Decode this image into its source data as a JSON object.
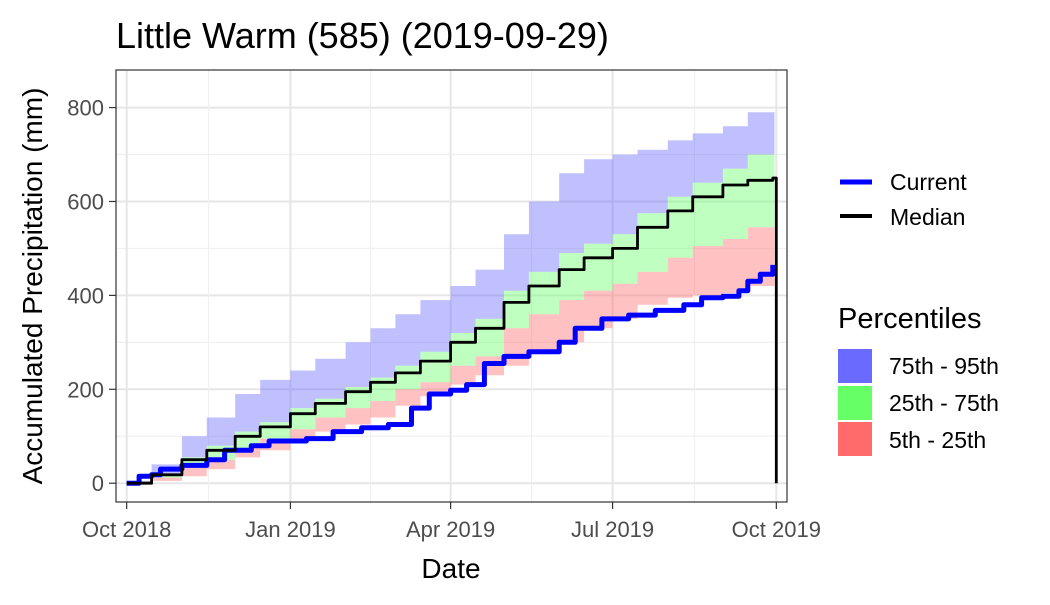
{
  "chart_data": {
    "type": "area",
    "title": "Little Warm (585) (2019-09-29)",
    "xlabel": "Date",
    "ylabel": "Accumulated Precipitation (mm)",
    "x_ticks": [
      {
        "date": "2018-10-01",
        "label": "Oct 2018"
      },
      {
        "date": "2019-01-01",
        "label": "Jan 2019"
      },
      {
        "date": "2019-04-01",
        "label": "Apr 2019"
      },
      {
        "date": "2019-07-01",
        "label": "Jul 2019"
      },
      {
        "date": "2019-10-01",
        "label": "Oct 2019"
      }
    ],
    "xlim": [
      "2018-09-25",
      "2019-10-07"
    ],
    "y_ticks": [
      0,
      200,
      400,
      600,
      800
    ],
    "ylim": [
      -40,
      880
    ],
    "grid": true,
    "colors": {
      "current": "#0000FF",
      "median": "#000000",
      "band_75_95": "#6A6AFF",
      "band_25_75": "#66FF66",
      "band_5_25": "#FF6B6B"
    },
    "series": [
      {
        "name": "Current",
        "points": [
          [
            "2018-10-01",
            0
          ],
          [
            "2018-10-08",
            15
          ],
          [
            "2018-10-15",
            18
          ],
          [
            "2018-10-20",
            30
          ],
          [
            "2018-11-01",
            38
          ],
          [
            "2018-11-15",
            50
          ],
          [
            "2018-11-25",
            70
          ],
          [
            "2018-12-10",
            80
          ],
          [
            "2018-12-20",
            90
          ],
          [
            "2019-01-10",
            95
          ],
          [
            "2019-01-25",
            110
          ],
          [
            "2019-02-10",
            118
          ],
          [
            "2019-02-25",
            125
          ],
          [
            "2019-03-10",
            160
          ],
          [
            "2019-03-20",
            190
          ],
          [
            "2019-04-01",
            198
          ],
          [
            "2019-04-10",
            210
          ],
          [
            "2019-04-20",
            255
          ],
          [
            "2019-05-01",
            270
          ],
          [
            "2019-05-15",
            280
          ],
          [
            "2019-06-01",
            300
          ],
          [
            "2019-06-10",
            330
          ],
          [
            "2019-06-25",
            350
          ],
          [
            "2019-07-10",
            358
          ],
          [
            "2019-07-25",
            368
          ],
          [
            "2019-08-10",
            380
          ],
          [
            "2019-08-20",
            395
          ],
          [
            "2019-09-01",
            398
          ],
          [
            "2019-09-10",
            410
          ],
          [
            "2019-09-15",
            430
          ],
          [
            "2019-09-22",
            445
          ],
          [
            "2019-09-29",
            465
          ]
        ]
      },
      {
        "name": "Median",
        "points": [
          [
            "2018-10-01",
            0
          ],
          [
            "2018-10-15",
            18
          ],
          [
            "2018-11-01",
            50
          ],
          [
            "2018-11-15",
            70
          ],
          [
            "2018-12-01",
            100
          ],
          [
            "2018-12-15",
            120
          ],
          [
            "2019-01-01",
            148
          ],
          [
            "2019-01-15",
            170
          ],
          [
            "2019-02-01",
            195
          ],
          [
            "2019-02-15",
            215
          ],
          [
            "2019-03-01",
            235
          ],
          [
            "2019-03-15",
            260
          ],
          [
            "2019-04-01",
            300
          ],
          [
            "2019-04-15",
            330
          ],
          [
            "2019-05-01",
            385
          ],
          [
            "2019-05-15",
            420
          ],
          [
            "2019-06-01",
            455
          ],
          [
            "2019-06-15",
            480
          ],
          [
            "2019-07-01",
            500
          ],
          [
            "2019-07-15",
            545
          ],
          [
            "2019-08-01",
            580
          ],
          [
            "2019-08-15",
            610
          ],
          [
            "2019-09-01",
            635
          ],
          [
            "2019-09-15",
            645
          ],
          [
            "2019-09-29",
            650
          ],
          [
            "2019-09-30",
            650
          ],
          [
            "2019-10-01",
            0
          ]
        ]
      }
    ],
    "bands": [
      {
        "name": "75th - 95th",
        "x": [
          "2018-10-01",
          "2018-10-15",
          "2018-11-01",
          "2018-11-15",
          "2018-12-01",
          "2018-12-15",
          "2019-01-01",
          "2019-01-15",
          "2019-02-01",
          "2019-02-15",
          "2019-03-01",
          "2019-03-15",
          "2019-04-01",
          "2019-04-15",
          "2019-05-01",
          "2019-05-15",
          "2019-06-01",
          "2019-06-15",
          "2019-07-01",
          "2019-07-15",
          "2019-08-01",
          "2019-08-15",
          "2019-09-01",
          "2019-09-15",
          "2019-09-30"
        ],
        "lower": [
          0,
          20,
          55,
          80,
          110,
          130,
          160,
          180,
          205,
          225,
          250,
          280,
          320,
          350,
          410,
          450,
          490,
          510,
          530,
          575,
          610,
          640,
          670,
          700,
          730
        ],
        "upper": [
          5,
          40,
          100,
          140,
          190,
          220,
          240,
          265,
          300,
          330,
          360,
          390,
          420,
          455,
          530,
          600,
          660,
          690,
          700,
          710,
          730,
          745,
          760,
          790,
          840
        ]
      },
      {
        "name": "25th - 75th",
        "x": [
          "2018-10-01",
          "2018-10-15",
          "2018-11-01",
          "2018-11-15",
          "2018-12-01",
          "2018-12-15",
          "2019-01-01",
          "2019-01-15",
          "2019-02-01",
          "2019-02-15",
          "2019-03-01",
          "2019-03-15",
          "2019-04-01",
          "2019-04-15",
          "2019-05-01",
          "2019-05-15",
          "2019-06-01",
          "2019-06-15",
          "2019-07-01",
          "2019-07-15",
          "2019-08-01",
          "2019-08-15",
          "2019-09-01",
          "2019-09-15",
          "2019-09-30"
        ],
        "lower": [
          0,
          12,
          35,
          50,
          75,
          95,
          115,
          140,
          160,
          175,
          200,
          215,
          250,
          270,
          330,
          360,
          390,
          410,
          425,
          450,
          480,
          505,
          520,
          545,
          580
        ],
        "upper": [
          0,
          20,
          55,
          80,
          110,
          130,
          160,
          180,
          205,
          225,
          250,
          280,
          320,
          350,
          410,
          450,
          490,
          510,
          530,
          575,
          610,
          640,
          670,
          700,
          730
        ]
      },
      {
        "name": "5th - 25th",
        "x": [
          "2018-10-01",
          "2018-10-15",
          "2018-11-01",
          "2018-11-15",
          "2018-12-01",
          "2018-12-15",
          "2019-01-01",
          "2019-01-15",
          "2019-02-01",
          "2019-02-15",
          "2019-03-01",
          "2019-03-15",
          "2019-04-01",
          "2019-04-15",
          "2019-05-01",
          "2019-05-15",
          "2019-06-01",
          "2019-06-15",
          "2019-07-01",
          "2019-07-15",
          "2019-08-01",
          "2019-08-15",
          "2019-09-01",
          "2019-09-15",
          "2019-09-30"
        ],
        "lower": [
          0,
          5,
          15,
          30,
          55,
          70,
          90,
          110,
          125,
          140,
          165,
          185,
          210,
          230,
          250,
          275,
          300,
          330,
          350,
          380,
          395,
          400,
          405,
          420,
          440
        ],
        "upper": [
          0,
          12,
          35,
          50,
          75,
          95,
          115,
          140,
          160,
          175,
          200,
          215,
          250,
          270,
          330,
          360,
          390,
          410,
          425,
          450,
          480,
          505,
          520,
          545,
          580
        ]
      }
    ],
    "legend": {
      "lines_entries": [
        "Current",
        "Median"
      ],
      "percentiles_title": "Percentiles",
      "percentiles_entries": [
        "75th - 95th",
        "25th - 75th",
        "5th - 25th"
      ],
      "placement": "right"
    }
  }
}
